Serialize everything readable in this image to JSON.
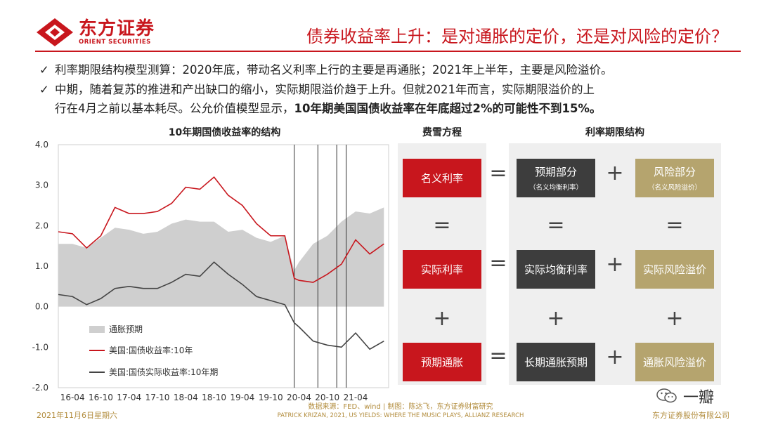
{
  "header": {
    "logo_cn": "东方证券",
    "logo_en": "ORIENT SECURITIES",
    "title": "债券收益率上升：是对通胀的定价，还是对风险的定价？"
  },
  "bullets": [
    {
      "check": "✓",
      "text": "利率期限结构模型测算：2020年底，带动名义利率上行的主要是再通胀；2021年上半年，主要是风险溢价。"
    },
    {
      "check": "✓",
      "text_a": "中期，随着复苏的推进和产出缺口的缩小，实际期限溢价趋于上升。但就2021年而言，实际期限溢价的上",
      "text_b": "行在4月之前以基本耗尽。公允价值模型显示，",
      "text_bold": "10年期美国国债收益率在年底超过2%的可能性不到15%。"
    }
  ],
  "chart_data": {
    "type": "line",
    "title": "10年期国债收益率的结构",
    "x_ticks": [
      "16-04",
      "16-10",
      "17-04",
      "17-10",
      "18-04",
      "18-10",
      "19-04",
      "19-10",
      "20-04",
      "20-10",
      "21-04"
    ],
    "y_ticks": [
      "4.0",
      "3.0",
      "2.0",
      "1.0",
      "0.0",
      "-1.0",
      "-2.0"
    ],
    "ylim": [
      -2.0,
      4.0
    ],
    "vlines": [
      "2020-03",
      "2020-08",
      "2020-12",
      "2021-02"
    ],
    "grid": false,
    "legend_position": "bottom-left",
    "series": [
      {
        "name": "通胀预期",
        "kind": "area",
        "color": "#cfcfcf",
        "x": [
          "2016-01",
          "2016-04",
          "2016-07",
          "2016-10",
          "2017-01",
          "2017-04",
          "2017-07",
          "2017-10",
          "2018-01",
          "2018-04",
          "2018-07",
          "2018-10",
          "2019-01",
          "2019-04",
          "2019-07",
          "2019-10",
          "2020-01",
          "2020-03",
          "2020-04",
          "2020-07",
          "2020-10",
          "2021-01",
          "2021-04",
          "2021-07",
          "2021-10"
        ],
        "values": [
          1.55,
          1.55,
          1.45,
          1.7,
          1.95,
          1.9,
          1.8,
          1.85,
          2.05,
          2.15,
          2.1,
          2.1,
          1.85,
          1.9,
          1.7,
          1.6,
          1.75,
          0.9,
          1.1,
          1.55,
          1.75,
          2.1,
          2.35,
          2.3,
          2.45
        ]
      },
      {
        "name": "美国:国债收益率:10年",
        "kind": "line",
        "color": "#c8161d",
        "x": [
          "2016-01",
          "2016-04",
          "2016-07",
          "2016-10",
          "2017-01",
          "2017-04",
          "2017-07",
          "2017-10",
          "2018-01",
          "2018-04",
          "2018-07",
          "2018-10",
          "2019-01",
          "2019-04",
          "2019-07",
          "2019-10",
          "2020-01",
          "2020-03",
          "2020-04",
          "2020-07",
          "2020-10",
          "2021-01",
          "2021-04",
          "2021-07",
          "2021-10"
        ],
        "values": [
          1.85,
          1.8,
          1.45,
          1.75,
          2.45,
          2.3,
          2.3,
          2.35,
          2.55,
          2.95,
          2.9,
          3.2,
          2.75,
          2.5,
          2.05,
          1.75,
          1.75,
          0.7,
          0.65,
          0.6,
          0.8,
          1.05,
          1.65,
          1.3,
          1.55
        ]
      },
      {
        "name": "美国:国债实际收益率:10年期",
        "kind": "line",
        "color": "#444444",
        "x": [
          "2016-01",
          "2016-04",
          "2016-07",
          "2016-10",
          "2017-01",
          "2017-04",
          "2017-07",
          "2017-10",
          "2018-01",
          "2018-04",
          "2018-07",
          "2018-10",
          "2019-01",
          "2019-04",
          "2019-07",
          "2019-10",
          "2020-01",
          "2020-03",
          "2020-04",
          "2020-07",
          "2020-10",
          "2021-01",
          "2021-04",
          "2021-07",
          "2021-10"
        ],
        "values": [
          0.3,
          0.25,
          0.05,
          0.2,
          0.45,
          0.5,
          0.45,
          0.45,
          0.6,
          0.8,
          0.75,
          1.1,
          0.8,
          0.55,
          0.25,
          0.15,
          0.05,
          -0.4,
          -0.5,
          -0.85,
          -0.95,
          -1.0,
          -0.65,
          -1.05,
          -0.85
        ]
      }
    ]
  },
  "diagram": {
    "left_title": "费雪方程",
    "right_title": "利率期限结构",
    "nominal": "名义利率",
    "real": "实际利率",
    "expected_inflation": "预期通胀",
    "expected_part": "预期部分",
    "expected_part_sub": "（名义均衡利率）",
    "risk_part": "风险部分",
    "risk_part_sub": "（名义风险溢价）",
    "real_equilibrium": "实际均衡利率",
    "real_risk_premium": "实际风险溢价",
    "long_inflation_exp": "长期通胀预期",
    "inflation_risk_premium": "通胀风险溢价",
    "eq": "=",
    "plus": "+"
  },
  "footer": {
    "date": "2021年11月6日星期六",
    "source_line1": "数据来源：FED、wind | 制图：陈达飞，东方证券财富研究",
    "source_line2": "PATRICK KRIZAN, 2021, US YIELDS: WHERE THE MUSIC PLAYS, ALLIANZ RESEARCH",
    "company": "东方证券股份有限公司",
    "wechat_name": "一瓣"
  }
}
